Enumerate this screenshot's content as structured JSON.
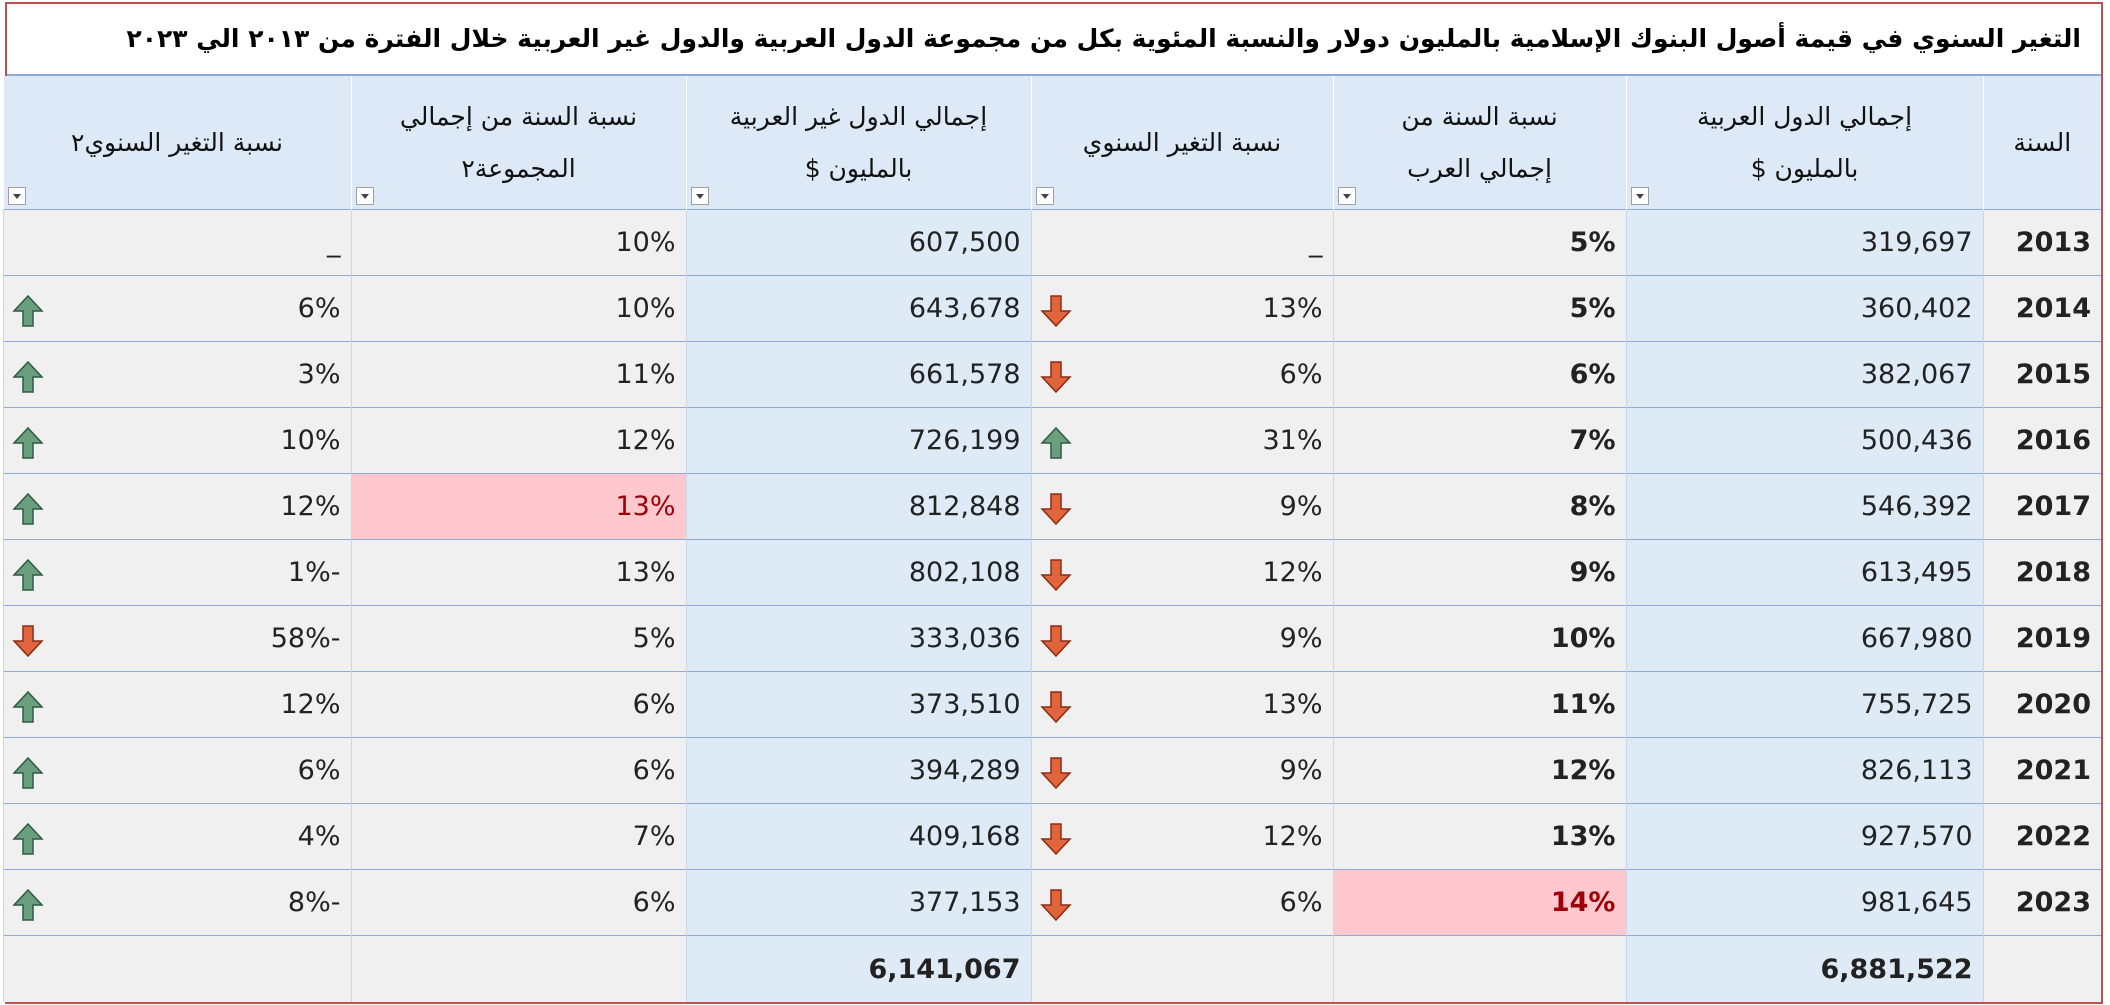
{
  "table": {
    "title": "التغير السنوي في قيمة أصول البنوك الإسلامية بالمليون دولار والنسبة المئوية بكل من مجموعة الدول العربية والدول غير العربية خلال الفترة من ٢٠١٣ الي ٢٠٢٣",
    "headers": [
      [
        "السنة"
      ],
      [
        "إجمالي الدول العربية",
        "بالمليون $"
      ],
      [
        "نسبة السنة من",
        "إجمالي العرب"
      ],
      [
        "نسبة التغير السنوي"
      ],
      [
        "إجمالي الدول غير العربية",
        "بالمليون $"
      ],
      [
        "نسبة السنة من إجمالي",
        "المجموعة٢"
      ],
      [
        "نسبة التغير السنوي٢"
      ]
    ],
    "rows": [
      [
        "2013",
        "319,697",
        "5%",
        "_",
        "607,500",
        "10%",
        "_"
      ],
      [
        "2014",
        "360,402",
        "5%",
        "13%",
        "643,678",
        "10%",
        "6%"
      ],
      [
        "2015",
        "382,067",
        "6%",
        "6%",
        "661,578",
        "11%",
        "3%"
      ],
      [
        "2016",
        "500,436",
        "7%",
        "31%",
        "726,199",
        "12%",
        "10%"
      ],
      [
        "2017",
        "546,392",
        "8%",
        "9%",
        "812,848",
        "13%",
        "12%"
      ],
      [
        "2018",
        "613,495",
        "9%",
        "12%",
        "802,108",
        "13%",
        "-1%"
      ],
      [
        "2019",
        "667,980",
        "10%",
        "9%",
        "333,036",
        "5%",
        "-58%"
      ],
      [
        "2020",
        "755,725",
        "11%",
        "13%",
        "373,510",
        "6%",
        "12%"
      ],
      [
        "2021",
        "826,113",
        "12%",
        "9%",
        "394,289",
        "6%",
        "6%"
      ],
      [
        "2022",
        "927,570",
        "13%",
        "12%",
        "409,168",
        "7%",
        "4%"
      ],
      [
        "2023",
        "981,645",
        "14%",
        "6%",
        "377,153",
        "6%",
        "-8%"
      ]
    ],
    "icons": [
      [
        null,
        null
      ],
      [
        "down",
        "up"
      ],
      [
        "down",
        "up"
      ],
      [
        "up",
        "up"
      ],
      [
        "down",
        "up"
      ],
      [
        "down",
        "up"
      ],
      [
        "down",
        "down"
      ],
      [
        "down",
        "up"
      ],
      [
        "down",
        "up"
      ],
      [
        "down",
        "up"
      ],
      [
        "down",
        "up"
      ]
    ],
    "highlighted": [
      "table.rows.4.5",
      "table.rows.10.2"
    ],
    "totals": {
      "arab": "6,881,522",
      "non_arab": "6,141,067"
    }
  }
}
